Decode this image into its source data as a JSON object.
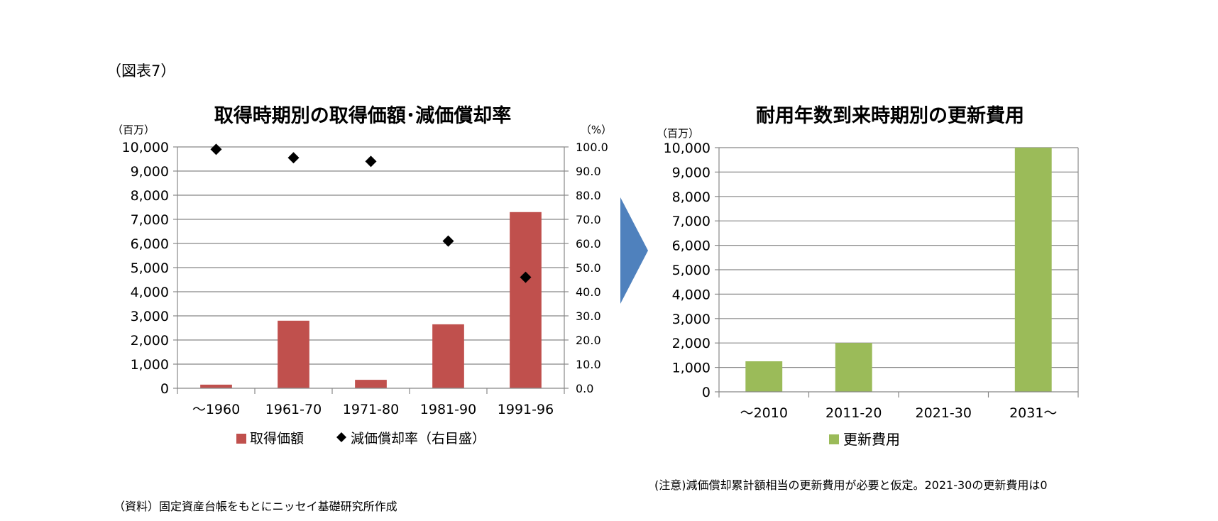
{
  "figure_label": "（図表7）",
  "note": "(注意)減価償却累計額相当の更新費用が必要と仮定。2021-30の更新費用は0",
  "source": "（資料）固定資産台帳をもとにニッセイ基礎研究所作成",
  "colors": {
    "bar_left": "#c0504d",
    "bar_right": "#9bbb59",
    "arrow": "#4f81bd",
    "grid": "#888888",
    "marker": "#000000"
  },
  "chart_data": [
    {
      "type": "bar",
      "title": "取得時期別の取得価額･減価償却率",
      "unit_left": "（百万）",
      "unit_right": "（%）",
      "categories": [
        "～1960",
        "1961-70",
        "1971-80",
        "1981-90",
        "1991-96"
      ],
      "yticks": [
        "0",
        "1,000",
        "2,000",
        "3,000",
        "4,000",
        "5,000",
        "6,000",
        "7,000",
        "8,000",
        "9,000",
        "10,000"
      ],
      "y2ticks": [
        "0.0",
        "10.0",
        "20.0",
        "30.0",
        "40.0",
        "50.0",
        "60.0",
        "70.0",
        "80.0",
        "90.0",
        "100.0"
      ],
      "ylim": [
        0,
        10000
      ],
      "y2lim": [
        0,
        100
      ],
      "grid": true,
      "legend_position": "bottom",
      "series": [
        {
          "name": "取得価額",
          "kind": "bar",
          "axis": "left",
          "values": [
            150,
            2800,
            350,
            2650,
            7300
          ]
        },
        {
          "name": "減価償却率（右目盛）",
          "kind": "scatter",
          "axis": "right",
          "marker": "diamond",
          "values": [
            99,
            95.5,
            94,
            61,
            46
          ]
        }
      ]
    },
    {
      "type": "bar",
      "title": "耐用年数到来時期別の更新費用",
      "unit_left": "（百万）",
      "categories": [
        "～2010",
        "2011-20",
        "2021-30",
        "2031～"
      ],
      "yticks": [
        "0",
        "1,000",
        "2,000",
        "3,000",
        "4,000",
        "5,000",
        "6,000",
        "7,000",
        "8,000",
        "9,000",
        "10,000"
      ],
      "ylim": [
        0,
        10000
      ],
      "grid": true,
      "legend_position": "bottom",
      "series": [
        {
          "name": "更新費用",
          "kind": "bar",
          "axis": "left",
          "values": [
            1250,
            2000,
            0,
            10000
          ]
        }
      ]
    }
  ]
}
